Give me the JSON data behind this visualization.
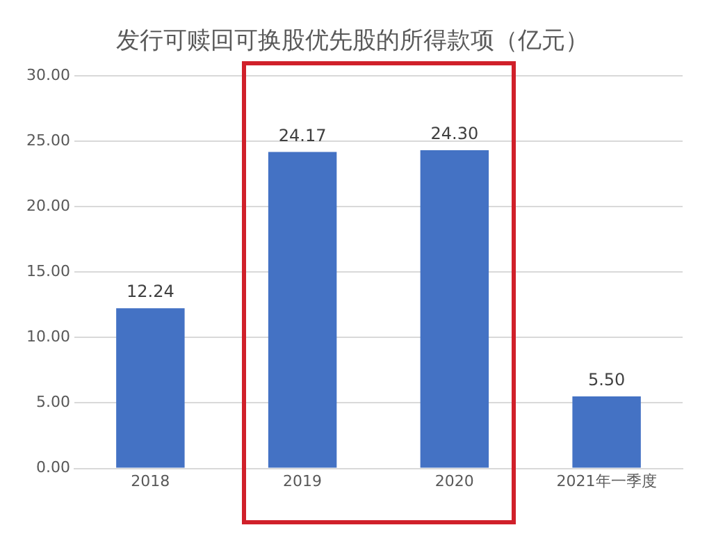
{
  "chart_data": {
    "type": "bar",
    "title": "发行可赎回可换股优先股的所得款项（亿元）",
    "categories": [
      "2018",
      "2019",
      "2020",
      "2021年一季度"
    ],
    "values": [
      12.24,
      24.17,
      24.3,
      5.5
    ],
    "value_labels": [
      "12.24",
      "24.17",
      "24.30",
      "5.50"
    ],
    "color": "#4472c4",
    "ylim": [
      0,
      30
    ],
    "yticks": [
      {
        "value": 0,
        "label": "0.00"
      },
      {
        "value": 5,
        "label": "5.00"
      },
      {
        "value": 10,
        "label": "10.00"
      },
      {
        "value": 15,
        "label": "15.00"
      },
      {
        "value": 20,
        "label": "20.00"
      },
      {
        "value": 25,
        "label": "25.00"
      },
      {
        "value": 30,
        "label": "30.00"
      }
    ],
    "grid": "y",
    "legend": false
  }
}
